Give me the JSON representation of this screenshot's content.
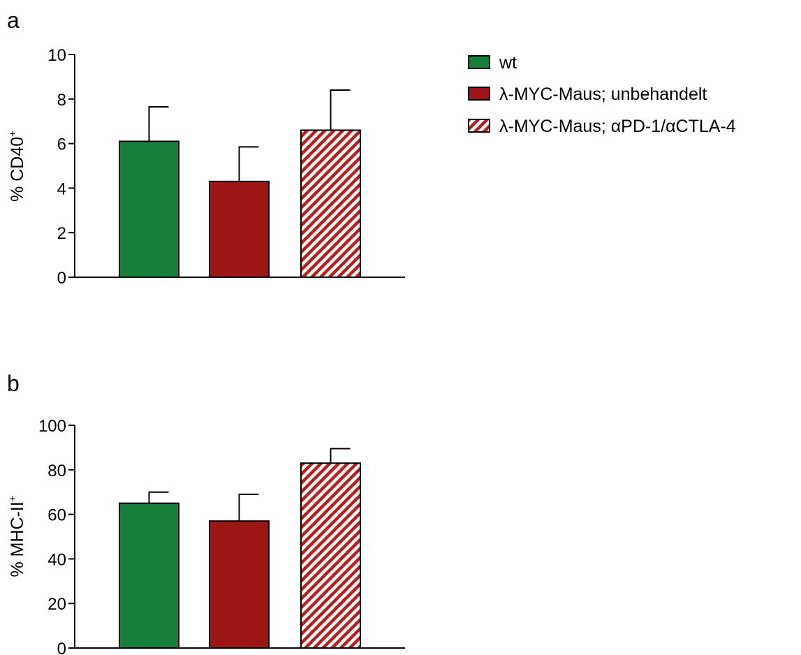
{
  "colors": {
    "wt": "#16803a",
    "untreated": "#9e1515",
    "treated_hatch": "#b52020",
    "axis": "#000000"
  },
  "legend": [
    {
      "label": "wt",
      "fill": "solid-green"
    },
    {
      "label": "λ-MYC-Maus; unbehandelt",
      "fill": "solid-red"
    },
    {
      "label": "λ-MYC-Maus; αPD-1/αCTLA-4",
      "fill": "hatched-red"
    }
  ],
  "chart_data": [
    {
      "panel": "a",
      "type": "bar",
      "ylabel": "% CD40",
      "ylabel_sup": "+",
      "ylim": [
        0,
        10
      ],
      "yticks": [
        0,
        2,
        4,
        6,
        8,
        10
      ],
      "grid": false,
      "legend_position": "top-right",
      "categories": [
        "wt",
        "λ-MYC-Maus; unbehandelt",
        "λ-MYC-Maus; αPD-1/αCTLA-4"
      ],
      "values": [
        6.1,
        4.3,
        6.6
      ],
      "errors": [
        1.55,
        1.55,
        1.8
      ]
    },
    {
      "panel": "b",
      "type": "bar",
      "ylabel": "% MHC-II",
      "ylabel_sup": "+",
      "ylim": [
        0,
        100
      ],
      "yticks": [
        0,
        20,
        40,
        60,
        80,
        100
      ],
      "grid": false,
      "categories": [
        "wt",
        "λ-MYC-Maus; unbehandelt",
        "λ-MYC-Maus; αPD-1/αCTLA-4"
      ],
      "values": [
        65,
        57,
        83
      ],
      "errors": [
        5,
        12,
        6.5
      ]
    }
  ]
}
